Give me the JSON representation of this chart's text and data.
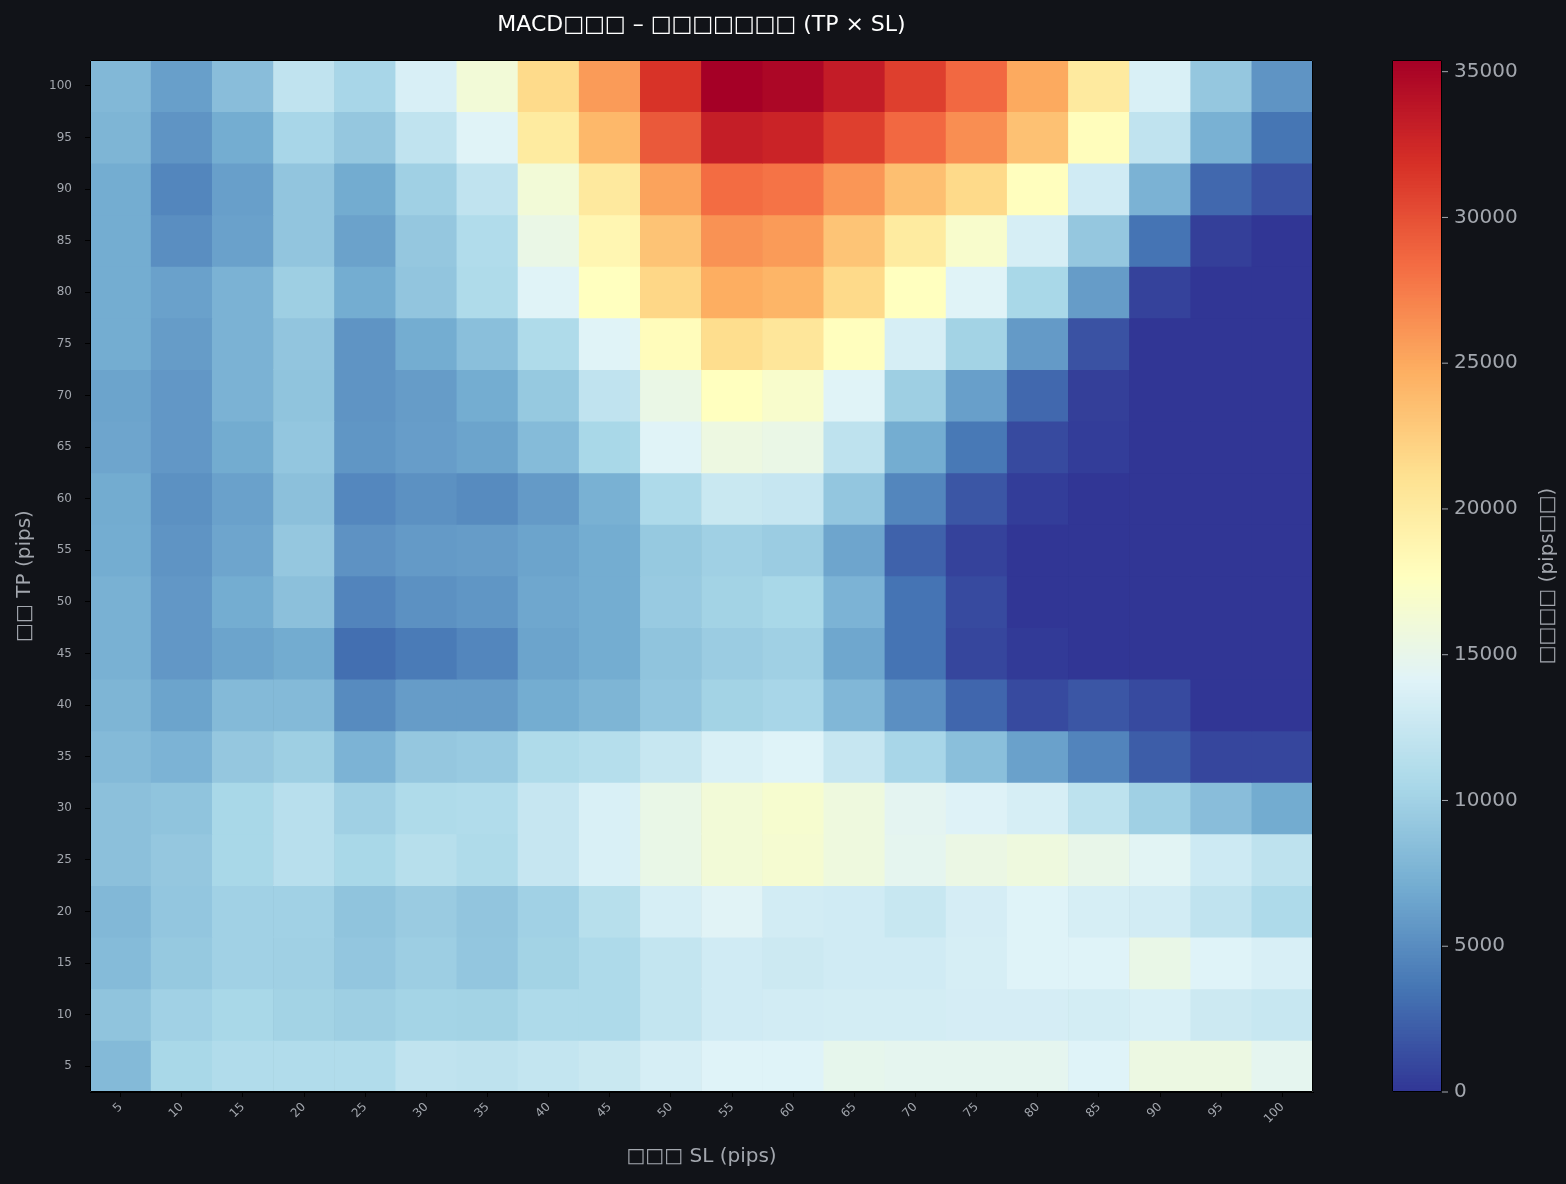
{
  "chart_data": {
    "type": "heatmap",
    "title": "MACD□□□ – □□□□□□□ (TP × SL)",
    "xlabel": "□□□ SL (pips)",
    "ylabel": "□□ TP (pips)",
    "clabel": "□□□□ (pips□□)",
    "categories": [
      "5",
      "10",
      "15",
      "20",
      "25",
      "30",
      "35",
      "40",
      "45",
      "50",
      "55",
      "60",
      "65",
      "70",
      "75",
      "80",
      "85",
      "90",
      "95",
      "100"
    ],
    "y_categories": [
      "100",
      "95",
      "90",
      "85",
      "80",
      "75",
      "70",
      "65",
      "60",
      "55",
      "50",
      "45",
      "40",
      "35",
      "30",
      "25",
      "20",
      "15",
      "10",
      "5"
    ],
    "cells": [
      [
        8000,
        6200,
        8400,
        12000,
        10400,
        13600,
        16200,
        21600,
        25800,
        31700,
        35400,
        34900,
        33300,
        31000,
        28600,
        25000,
        20100,
        13700,
        9200,
        5500
      ],
      [
        7700,
        5500,
        7100,
        10400,
        9200,
        12000,
        14200,
        20000,
        24100,
        29500,
        33200,
        32800,
        31000,
        28600,
        26500,
        23400,
        17900,
        12000,
        7400,
        3600
      ],
      [
        7100,
        4600,
        6200,
        9000,
        7000,
        9900,
        12000,
        16200,
        20200,
        25400,
        28400,
        28000,
        26100,
        23600,
        21700,
        17800,
        13100,
        7500,
        2800,
        1600
      ],
      [
        7100,
        5100,
        6300,
        9000,
        6400,
        9200,
        11000,
        15300,
        18700,
        23300,
        26300,
        25800,
        23200,
        20000,
        16900,
        13500,
        9200,
        3500,
        500,
        0
      ],
      [
        7100,
        6300,
        7500,
        9800,
        7100,
        9000,
        10900,
        14200,
        17700,
        21900,
        24800,
        24300,
        21700,
        17700,
        14200,
        10500,
        6000,
        700,
        0,
        0
      ],
      [
        7100,
        6000,
        7500,
        9000,
        5500,
        7100,
        8500,
        10900,
        14200,
        18000,
        21400,
        20500,
        17800,
        13500,
        10100,
        5900,
        1600,
        0,
        0,
        0
      ],
      [
        6500,
        5700,
        7500,
        8900,
        5500,
        6000,
        7100,
        9300,
        12000,
        15300,
        17700,
        16900,
        14200,
        9800,
        6200,
        2800,
        500,
        0,
        0,
        0
      ],
      [
        6600,
        5700,
        7000,
        9100,
        5600,
        6100,
        6500,
        8200,
        10500,
        14200,
        15600,
        15300,
        11900,
        7100,
        3800,
        1100,
        400,
        0,
        0,
        0
      ],
      [
        7000,
        5300,
        6300,
        8600,
        4700,
        5300,
        4900,
        5900,
        7400,
        10800,
        12600,
        12400,
        9100,
        4600,
        1800,
        400,
        0,
        0,
        0,
        0
      ],
      [
        7100,
        5500,
        6600,
        9200,
        5400,
        5900,
        6000,
        6500,
        7100,
        9300,
        9900,
        9600,
        6600,
        2500,
        700,
        0,
        0,
        0,
        0,
        0
      ],
      [
        7400,
        5700,
        7100,
        8600,
        4500,
        5300,
        5600,
        6700,
        7100,
        9400,
        10100,
        10500,
        7600,
        3500,
        1100,
        0,
        0,
        0,
        0,
        0
      ],
      [
        7400,
        5700,
        6500,
        7000,
        3200,
        3900,
        4600,
        6500,
        7100,
        8900,
        9600,
        9900,
        6700,
        3500,
        900,
        200,
        0,
        0,
        0,
        0
      ],
      [
        7700,
        6500,
        8100,
        8100,
        4900,
        6000,
        6000,
        7100,
        7700,
        9100,
        10100,
        10400,
        7900,
        5200,
        2700,
        1100,
        1800,
        1100,
        0,
        0
      ],
      [
        8100,
        7600,
        9200,
        9800,
        7600,
        9200,
        9400,
        10900,
        11300,
        12500,
        13700,
        14100,
        12400,
        10400,
        8500,
        6300,
        4500,
        2200,
        900,
        900
      ],
      [
        8600,
        8900,
        10500,
        11500,
        9900,
        10900,
        11000,
        12400,
        13700,
        15200,
        16200,
        16700,
        15800,
        14600,
        14000,
        13500,
        11800,
        9900,
        8400,
        7000
      ],
      [
        8600,
        9200,
        10500,
        11500,
        10500,
        11400,
        10900,
        12400,
        13700,
        15200,
        16200,
        16600,
        15800,
        14700,
        15400,
        15800,
        15100,
        14400,
        12900,
        11900
      ],
      [
        8000,
        9100,
        10000,
        10000,
        8900,
        9500,
        9000,
        10000,
        11400,
        13500,
        14300,
        13200,
        13100,
        12500,
        13400,
        14100,
        13500,
        13200,
        12000,
        10800
      ],
      [
        8200,
        9300,
        10000,
        9900,
        9100,
        9700,
        9100,
        10100,
        10800,
        12200,
        13100,
        12800,
        13100,
        13100,
        13500,
        14100,
        14100,
        15200,
        14100,
        13600
      ],
      [
        8900,
        10000,
        10500,
        10100,
        9800,
        10200,
        10100,
        10800,
        10800,
        12200,
        13100,
        13200,
        13300,
        13300,
        13400,
        13400,
        13300,
        13700,
        12800,
        12500
      ],
      [
        8100,
        10500,
        11000,
        11000,
        11000,
        12000,
        11900,
        12200,
        12600,
        13500,
        14100,
        14100,
        14900,
        14700,
        14700,
        14700,
        14100,
        15500,
        15500,
        14700
      ]
    ],
    "clim": [
      0,
      35400
    ],
    "cticks": [
      0,
      5000,
      10000,
      15000,
      20000,
      25000,
      30000,
      35000
    ]
  }
}
